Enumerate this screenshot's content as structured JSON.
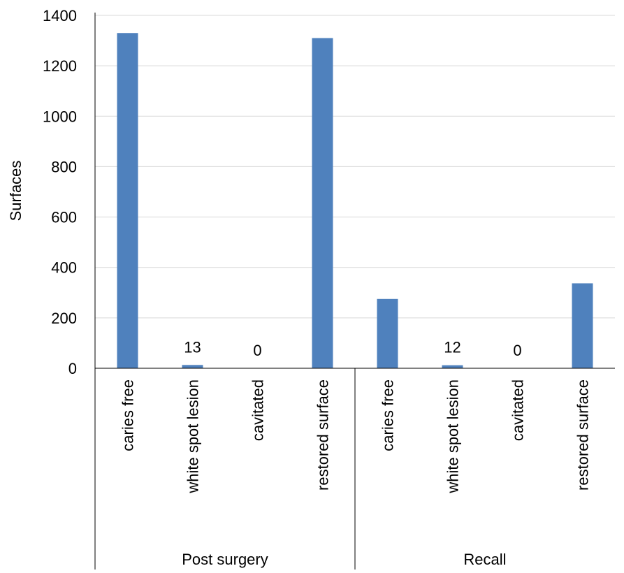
{
  "chart_data": {
    "type": "bar",
    "title": "",
    "ylabel": "Surfaces",
    "xlabel": "",
    "ylim": [
      0,
      1400
    ],
    "yticks": [
      0,
      200,
      400,
      600,
      800,
      1000,
      1200,
      1400
    ],
    "grid": true,
    "legend": "none",
    "bar_color": "#4F81BD",
    "groups": [
      {
        "name": "Post surgery",
        "categories": [
          "caries free",
          "white spot lesion",
          "cavitated",
          "restored surface"
        ],
        "values": [
          1330,
          13,
          0,
          1310
        ],
        "data_labels": [
          "",
          "13",
          "0",
          ""
        ]
      },
      {
        "name": "Recall",
        "categories": [
          "caries free",
          "white spot lesion",
          "cavitated",
          "restored surface"
        ],
        "values": [
          275,
          12,
          0,
          337
        ],
        "data_labels": [
          "",
          "12",
          "0",
          ""
        ]
      }
    ]
  }
}
